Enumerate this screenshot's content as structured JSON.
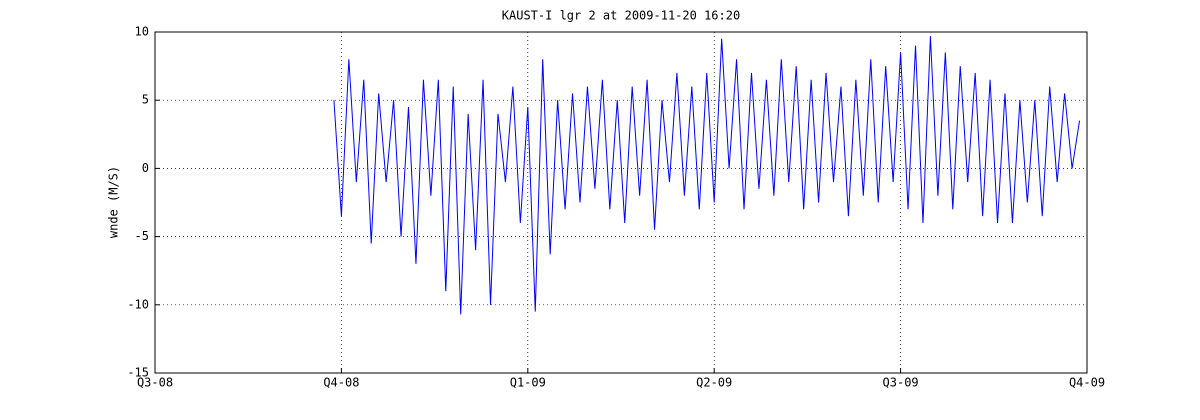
{
  "chart_data": {
    "type": "line",
    "title": "KAUST-I lgr 2 at 2009-11-20 16:20",
    "ylabel": "wnde (M/S)",
    "color": "#0000ff",
    "grid": true,
    "xlim": [
      2008.5,
      2009.75
    ],
    "ylim": [
      -15,
      10
    ],
    "xticks": [
      {
        "value": 2008.5,
        "label": "Q3-08"
      },
      {
        "value": 2008.75,
        "label": "Q4-08"
      },
      {
        "value": 2009,
        "label": "Q1-09"
      },
      {
        "value": 2009.25,
        "label": "Q2-09"
      },
      {
        "value": 2009.5,
        "label": "Q3-09"
      },
      {
        "value": 2009.75,
        "label": "Q4-09"
      }
    ],
    "yticks": [
      10,
      5,
      0,
      -5,
      -10,
      -15
    ],
    "x": [
      2008.74,
      2008.75,
      2008.76,
      2008.77,
      2008.78,
      2008.79,
      2008.8,
      2008.81,
      2008.82,
      2008.83,
      2008.84,
      2008.85,
      2008.86,
      2008.87,
      2008.88,
      2008.89,
      2008.9,
      2008.91,
      2008.92,
      2008.93,
      2008.94,
      2008.95,
      2008.96,
      2008.97,
      2008.98,
      2008.99,
      2009.0,
      2009.01,
      2009.02,
      2009.03,
      2009.04,
      2009.05,
      2009.06,
      2009.07,
      2009.08,
      2009.09,
      2009.1,
      2009.11,
      2009.12,
      2009.13,
      2009.14,
      2009.15,
      2009.16,
      2009.17,
      2009.18,
      2009.19,
      2009.2,
      2009.21,
      2009.22,
      2009.23,
      2009.24,
      2009.25,
      2009.26,
      2009.27,
      2009.28,
      2009.29,
      2009.3,
      2009.31,
      2009.32,
      2009.33,
      2009.34,
      2009.35,
      2009.36,
      2009.37,
      2009.38,
      2009.39,
      2009.4,
      2009.41,
      2009.42,
      2009.43,
      2009.44,
      2009.45,
      2009.46,
      2009.47,
      2009.48,
      2009.49,
      2009.5,
      2009.51,
      2009.52,
      2009.53,
      2009.54,
      2009.55,
      2009.56,
      2009.57,
      2009.58,
      2009.59,
      2009.6,
      2009.61,
      2009.62,
      2009.63,
      2009.64,
      2009.65,
      2009.66,
      2009.67,
      2009.68,
      2009.69,
      2009.7,
      2009.71,
      2009.72,
      2009.73,
      2009.74
    ],
    "values": [
      5,
      -3.5,
      8,
      -1,
      6.5,
      -5.5,
      5.5,
      -1,
      5,
      -5,
      4.5,
      -7,
      6.5,
      -2,
      6.5,
      -9,
      6,
      -10.7,
      4,
      -6,
      6.5,
      -10,
      4,
      -1,
      6,
      -4,
      4.5,
      -10.5,
      8,
      -6.3,
      5,
      -3,
      5.5,
      -2.5,
      6,
      -1.5,
      6.5,
      -3,
      5,
      -4,
      6,
      -2,
      6.5,
      -4.5,
      5,
      -1,
      7,
      -2,
      6,
      -3,
      7,
      -2.5,
      9.5,
      0,
      8,
      -3,
      7,
      -1.5,
      6.5,
      -2,
      8,
      -1,
      7.5,
      -3,
      6.5,
      -2.5,
      7,
      -1,
      6,
      -3.5,
      6.5,
      -2,
      8,
      -2.5,
      7.5,
      -1,
      8.5,
      -3,
      9,
      -4,
      9.7,
      -2,
      8.5,
      -3,
      7.5,
      -1,
      7,
      -3.5,
      6.5,
      -4,
      5.5,
      -4,
      5,
      -2.5,
      5,
      -3.5,
      6,
      -1,
      5.5,
      0,
      3.5
    ]
  }
}
